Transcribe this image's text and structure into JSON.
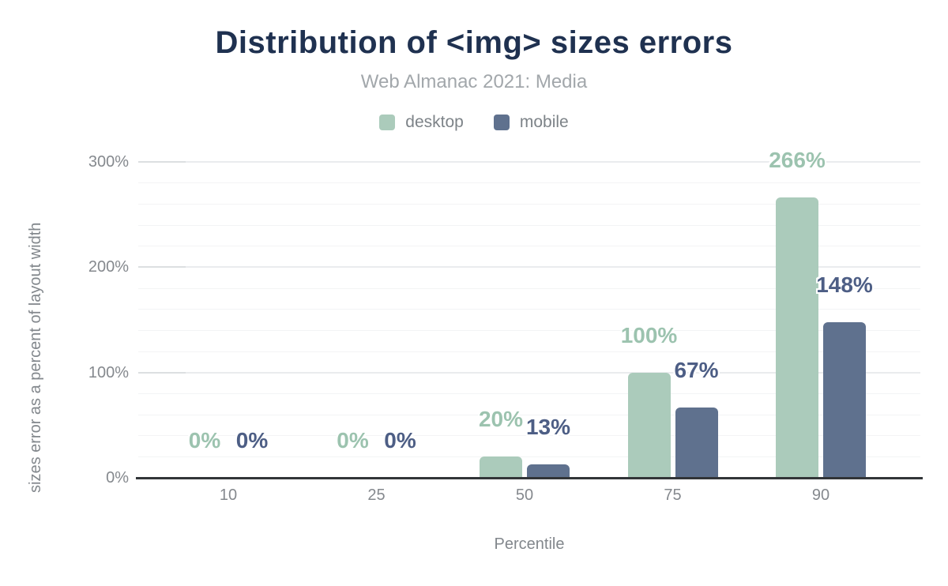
{
  "chart_data": {
    "type": "bar",
    "title": "Distribution of <img> sizes errors",
    "subtitle": "Web Almanac 2021: Media",
    "xlabel": "Percentile",
    "ylabel": "sizes error as a percent of layout width",
    "categories": [
      "10",
      "25",
      "50",
      "75",
      "90"
    ],
    "series": [
      {
        "name": "desktop",
        "color": "#abcbbb",
        "label_color": "#9cc3af",
        "values": [
          0,
          0,
          20,
          100,
          266
        ]
      },
      {
        "name": "mobile",
        "color": "#5f718e",
        "label_color": "#4d5e85",
        "values": [
          0,
          0,
          13,
          67,
          148
        ]
      }
    ],
    "data_label_format": "{value}%",
    "yticks": [
      0,
      100,
      200,
      300
    ],
    "ytick_format": "{value}%",
    "ylim": [
      0,
      300
    ],
    "grid_minor_step": 20,
    "grid": true,
    "legend_position": "top",
    "colors": {
      "title": "#1f3150",
      "subtitle": "#a2a7ab",
      "axis_text": "#85898e",
      "baseline": "#323538",
      "grid_minor": "#f3f4f5",
      "grid_major": "#eaecee",
      "background": "#ffffff"
    }
  }
}
